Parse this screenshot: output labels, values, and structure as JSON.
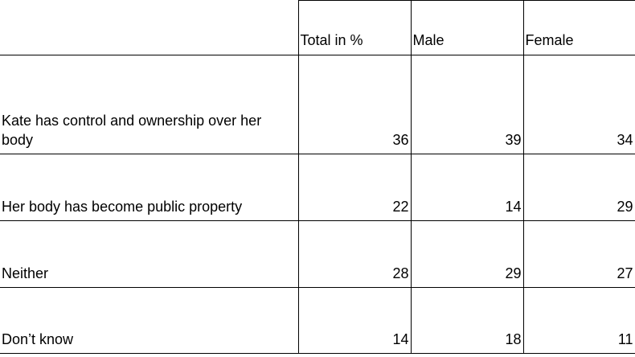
{
  "table": {
    "columns": [
      "Total in %",
      "Male",
      "Female"
    ],
    "rows": [
      {
        "label": "Kate has control and ownership over her body",
        "values": [
          36,
          39,
          34
        ]
      },
      {
        "label": "Her body has become public property",
        "values": [
          22,
          14,
          29
        ]
      },
      {
        "label": "Neither",
        "values": [
          28,
          29,
          27
        ]
      },
      {
        "label": "Don’t know",
        "values": [
          14,
          18,
          11
        ]
      }
    ]
  }
}
